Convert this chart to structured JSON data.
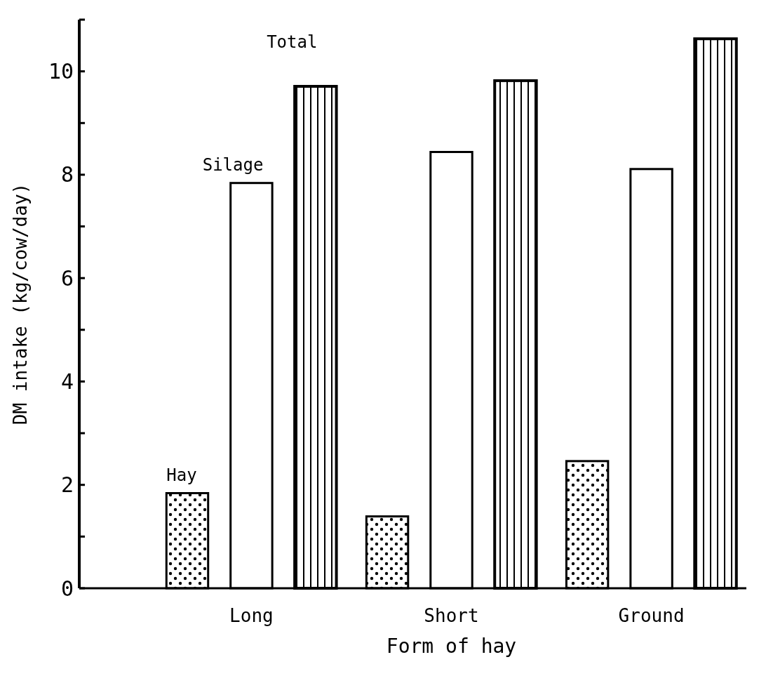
{
  "chart_data": {
    "type": "bar",
    "xlabel": "Form of hay",
    "ylabel": "DM intake (kg/cow/day)",
    "categories": [
      "Long",
      "Short",
      "Ground"
    ],
    "series": [
      {
        "name": "Hay",
        "color": "#000000",
        "values": [
          1.84,
          1.39,
          2.46
        ]
      },
      {
        "name": "Silage",
        "color": "#000000",
        "values": [
          7.84,
          8.44,
          8.11
        ]
      },
      {
        "name": "Total",
        "color": "#000000",
        "values": [
          9.71,
          9.82,
          10.63
        ]
      }
    ],
    "ylim": [
      0,
      11
    ],
    "yticks": [
      0,
      {
        "value": 1,
        "label": null
      },
      2,
      {
        "value": 3,
        "label": null
      },
      4,
      {
        "value": 5,
        "label": null
      },
      6,
      {
        "value": 7,
        "label": null
      },
      8,
      {
        "value": 9,
        "label": null
      },
      10,
      {
        "value": 11,
        "label": null
      }
    ],
    "grid": false
  }
}
